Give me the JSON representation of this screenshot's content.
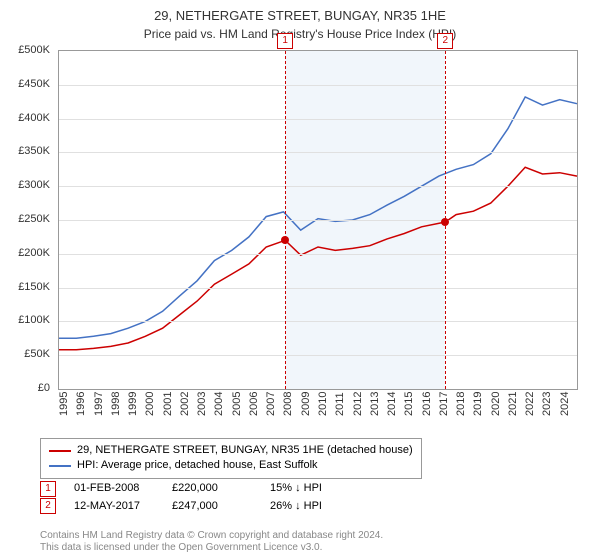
{
  "title": "29, NETHERGATE STREET, BUNGAY, NR35 1HE",
  "subtitle": "Price paid vs. HM Land Registry's House Price Index (HPI)",
  "chart": {
    "type": "line",
    "background_color": "#ffffff",
    "grid_color": "#e0e0e0",
    "border_color": "#999999",
    "ylim": [
      0,
      500000
    ],
    "ytick_step": 50000,
    "y_ticks": [
      "£0",
      "£50K",
      "£100K",
      "£150K",
      "£200K",
      "£250K",
      "£300K",
      "£350K",
      "£400K",
      "£450K",
      "£500K"
    ],
    "xlim": [
      1995,
      2025
    ],
    "x_ticks": [
      1995,
      1996,
      1997,
      1998,
      1999,
      2000,
      2001,
      2002,
      2003,
      2004,
      2005,
      2006,
      2007,
      2008,
      2009,
      2010,
      2011,
      2012,
      2013,
      2014,
      2015,
      2016,
      2017,
      2018,
      2019,
      2020,
      2021,
      2022,
      2023,
      2024
    ],
    "label_fontsize": 11,
    "line_width": 1.5,
    "shaded_region": {
      "from": 2008.1,
      "to": 2017.37,
      "color": "#e8f0f8"
    },
    "vlines": [
      {
        "x": 2008.1,
        "label": "1",
        "color": "#cc0000"
      },
      {
        "x": 2017.37,
        "label": "2",
        "color": "#cc0000"
      }
    ],
    "series": [
      {
        "name": "property",
        "color": "#cc0000",
        "label": "29, NETHERGATE STREET, BUNGAY, NR35 1HE (detached house)",
        "points": [
          [
            1995,
            58000
          ],
          [
            1996,
            58000
          ],
          [
            1997,
            60000
          ],
          [
            1998,
            63000
          ],
          [
            1999,
            68000
          ],
          [
            2000,
            78000
          ],
          [
            2001,
            90000
          ],
          [
            2002,
            110000
          ],
          [
            2003,
            130000
          ],
          [
            2004,
            155000
          ],
          [
            2005,
            170000
          ],
          [
            2006,
            185000
          ],
          [
            2007,
            210000
          ],
          [
            2008.1,
            220000
          ],
          [
            2009,
            198000
          ],
          [
            2010,
            210000
          ],
          [
            2011,
            205000
          ],
          [
            2012,
            208000
          ],
          [
            2013,
            212000
          ],
          [
            2014,
            222000
          ],
          [
            2015,
            230000
          ],
          [
            2016,
            240000
          ],
          [
            2017.37,
            247000
          ],
          [
            2018,
            258000
          ],
          [
            2019,
            263000
          ],
          [
            2020,
            275000
          ],
          [
            2021,
            300000
          ],
          [
            2022,
            328000
          ],
          [
            2023,
            318000
          ],
          [
            2024,
            320000
          ],
          [
            2025,
            315000
          ]
        ],
        "markers": [
          {
            "x": 2008.1,
            "y": 220000,
            "color": "#cc0000"
          },
          {
            "x": 2017.37,
            "y": 247000,
            "color": "#cc0000"
          }
        ]
      },
      {
        "name": "hpi",
        "color": "#4472c4",
        "label": "HPI: Average price, detached house, East Suffolk",
        "points": [
          [
            1995,
            75000
          ],
          [
            1996,
            75000
          ],
          [
            1997,
            78000
          ],
          [
            1998,
            82000
          ],
          [
            1999,
            90000
          ],
          [
            2000,
            100000
          ],
          [
            2001,
            115000
          ],
          [
            2002,
            138000
          ],
          [
            2003,
            160000
          ],
          [
            2004,
            190000
          ],
          [
            2005,
            205000
          ],
          [
            2006,
            225000
          ],
          [
            2007,
            255000
          ],
          [
            2008,
            262000
          ],
          [
            2009,
            235000
          ],
          [
            2010,
            252000
          ],
          [
            2011,
            248000
          ],
          [
            2012,
            250000
          ],
          [
            2013,
            258000
          ],
          [
            2014,
            272000
          ],
          [
            2015,
            285000
          ],
          [
            2016,
            300000
          ],
          [
            2017,
            315000
          ],
          [
            2018,
            325000
          ],
          [
            2019,
            332000
          ],
          [
            2020,
            348000
          ],
          [
            2021,
            385000
          ],
          [
            2022,
            432000
          ],
          [
            2023,
            420000
          ],
          [
            2024,
            428000
          ],
          [
            2025,
            422000
          ]
        ]
      }
    ]
  },
  "legend": {
    "items": [
      {
        "color": "#cc0000",
        "label": "29, NETHERGATE STREET, BUNGAY, NR35 1HE (detached house)"
      },
      {
        "color": "#4472c4",
        "label": "HPI: Average price, detached house, East Suffolk"
      }
    ]
  },
  "sales": [
    {
      "marker": "1",
      "date": "01-FEB-2008",
      "price": "£220,000",
      "delta": "15% ↓ HPI"
    },
    {
      "marker": "2",
      "date": "12-MAY-2017",
      "price": "£247,000",
      "delta": "26% ↓ HPI"
    }
  ],
  "footer": {
    "line1": "Contains HM Land Registry data © Crown copyright and database right 2024.",
    "line2": "This data is licensed under the Open Government Licence v3.0."
  }
}
